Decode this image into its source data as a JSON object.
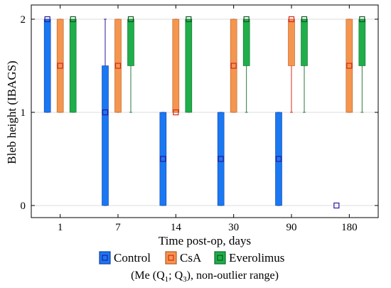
{
  "chart_data": {
    "type": "box",
    "x": [
      "1",
      "7",
      "14",
      "30",
      "90",
      "180"
    ],
    "xlabel": "Time post-op, days",
    "ylabel": "Bleb height (IBAGS)",
    "ylim": [
      0,
      2
    ],
    "yticks": [
      "0",
      "1",
      "2"
    ],
    "grid": true,
    "legend_position": "bottom",
    "legend_note": {
      "pre": "(Me (Q",
      "sub1": "1",
      "mid": "; Q",
      "sub2": "3",
      "post": "), non-outlier range)"
    },
    "series": [
      {
        "name": "Control",
        "color": "#1a78f2",
        "box": [
          {
            "median": 2,
            "q1": 1,
            "q3": 2,
            "min": 1,
            "max": 2
          },
          {
            "median": 1,
            "q1": 0,
            "q3": 1.5,
            "min": 0,
            "max": 2
          },
          {
            "median": 0.5,
            "q1": 0,
            "q3": 1,
            "min": 0,
            "max": 1
          },
          {
            "median": 0.5,
            "q1": 0,
            "q3": 1,
            "min": 0,
            "max": 1
          },
          {
            "median": 0.5,
            "q1": 0,
            "q3": 1,
            "min": 0,
            "max": 1
          },
          {
            "median": 0,
            "q1": 0,
            "q3": 0,
            "min": 0,
            "max": 0
          }
        ]
      },
      {
        "name": "CsA",
        "color": "#f5964f",
        "box": [
          {
            "median": 1.5,
            "q1": 1,
            "q3": 2,
            "min": 1,
            "max": 2
          },
          {
            "median": 1.5,
            "q1": 1,
            "q3": 2,
            "min": 1,
            "max": 2
          },
          {
            "median": 1,
            "q1": 1,
            "q3": 2,
            "min": 1,
            "max": 2
          },
          {
            "median": 1.5,
            "q1": 1,
            "q3": 2,
            "min": 1,
            "max": 2
          },
          {
            "median": 2,
            "q1": 1.5,
            "q3": 2,
            "min": 1,
            "max": 2
          },
          {
            "median": 1.5,
            "q1": 1,
            "q3": 2,
            "min": 1,
            "max": 2
          }
        ]
      },
      {
        "name": "Everolimus",
        "color": "#1fae4a",
        "box": [
          {
            "median": 2,
            "q1": 1,
            "q3": 2,
            "min": 1,
            "max": 2
          },
          {
            "median": 2,
            "q1": 1.5,
            "q3": 2,
            "min": 1,
            "max": 2
          },
          {
            "median": 2,
            "q1": 1,
            "q3": 2,
            "min": 1,
            "max": 2
          },
          {
            "median": 2,
            "q1": 1.5,
            "q3": 2,
            "min": 1,
            "max": 2
          },
          {
            "median": 2,
            "q1": 1.5,
            "q3": 2,
            "min": 1,
            "max": 2
          },
          {
            "median": 2,
            "q1": 1.5,
            "q3": 2,
            "min": 1,
            "max": 2
          }
        ]
      }
    ]
  }
}
